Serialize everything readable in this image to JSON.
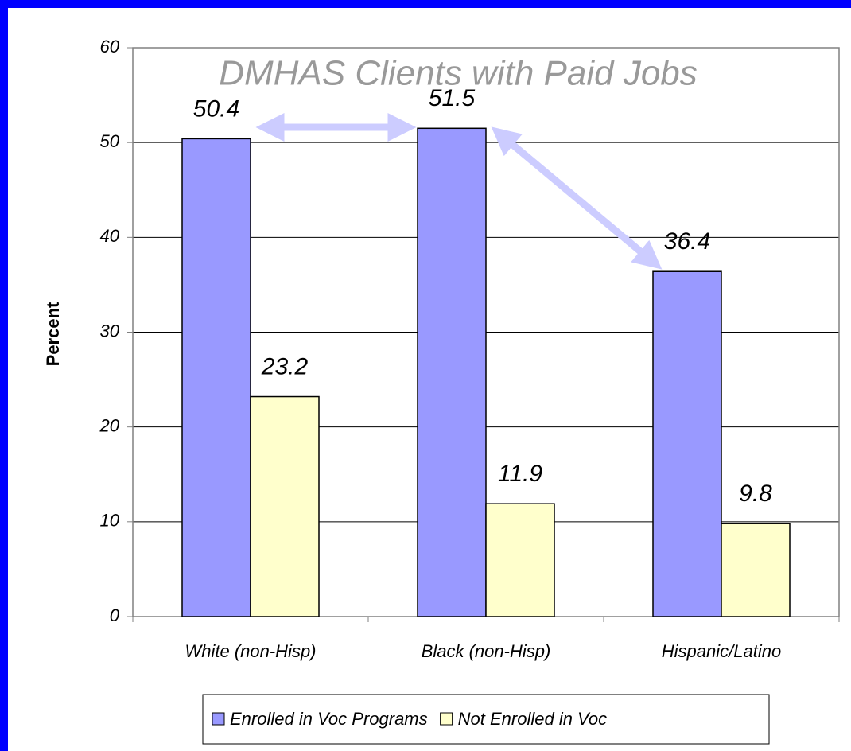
{
  "chart_data": {
    "type": "bar",
    "title": "DMHAS Clients with Paid Jobs",
    "y_label": "Percent",
    "categories": [
      "White (non-Hisp)",
      "Black (non-Hisp)",
      "Hispanic/Latino"
    ],
    "series": [
      {
        "name": "Enrolled in Voc Programs",
        "color": "#9999ff",
        "values": [
          50.4,
          51.5,
          36.4
        ]
      },
      {
        "name": "Not Enrolled in Voc",
        "color": "#ffffcc",
        "values": [
          23.2,
          11.9,
          9.8
        ]
      }
    ],
    "ylim": [
      0,
      60
    ],
    "yticks": [
      0,
      10,
      20,
      30,
      40,
      50,
      60
    ],
    "grid": true,
    "legend": "bottom"
  }
}
